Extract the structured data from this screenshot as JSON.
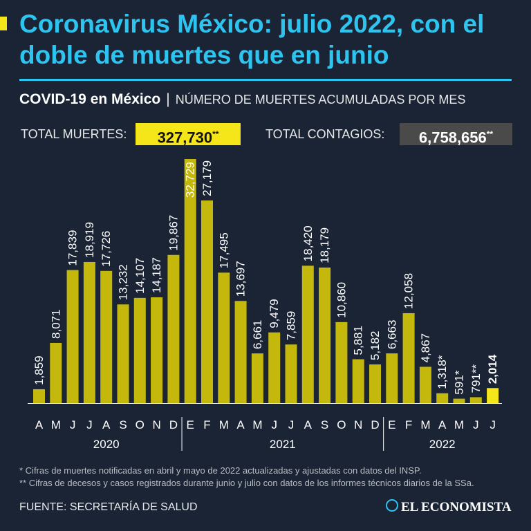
{
  "header": {
    "title": "Coronavirus México: julio 2022, con el doble de muertes que en junio",
    "subtitle_bold": "COVID-19 en México",
    "subtitle_sep": "|",
    "subtitle_light": "NÚMERO DE MUERTES ACUMULADAS POR MES"
  },
  "totals": {
    "deaths_label": "TOTAL MUERTES:",
    "deaths_value": "327,730",
    "deaths_mark": "**",
    "cases_label": "TOTAL CONTAGIOS:",
    "cases_value": "6,758,656",
    "cases_mark": "**"
  },
  "footnotes": {
    "note1": "* Cifras de muertes notificadas en abril y mayo de 2022 actualizadas y ajustadas con datos del INSP.",
    "note2": "** Cifras de decesos y casos registrados durante junio y julio con datos de los informes técnicos diarios de la SSa."
  },
  "source": "FUENTE: SECRETARÍA DE SALUD",
  "logo": "EL ECONOMISTA",
  "colors": {
    "bar": "#c4b80c",
    "highlight": "#f5e61a",
    "accent": "#2ec4f0",
    "background": "#1b2435"
  },
  "chart_data": {
    "type": "bar",
    "title": "Número de muertes acumuladas por mes",
    "categories": [
      "A",
      "M",
      "J",
      "J",
      "A",
      "S",
      "O",
      "N",
      "D",
      "E",
      "F",
      "M",
      "A",
      "M",
      "J",
      "J",
      "A",
      "S",
      "O",
      "N",
      "D",
      "E",
      "F",
      "M",
      "A",
      "M",
      "J",
      "J"
    ],
    "values": [
      1859,
      8071,
      17839,
      18919,
      17726,
      13232,
      14107,
      14187,
      19867,
      32729,
      27179,
      17495,
      13697,
      6661,
      9479,
      7859,
      18420,
      18179,
      10860,
      5881,
      5182,
      6663,
      12058,
      4867,
      1318,
      591,
      791,
      2014
    ],
    "labels": [
      "1,859",
      "8,071",
      "17,839",
      "18,919",
      "17,726",
      "13,232",
      "14,107",
      "14,187",
      "19,867",
      "32,729",
      "27,179",
      "17,495",
      "13,697",
      "6,661",
      "9,479",
      "7,859",
      "18,420",
      "18,179",
      "10,860",
      "5,881",
      "5,182",
      "6,663",
      "12,058",
      "4,867",
      "1,318*",
      "591*",
      "791**",
      "2,014"
    ],
    "highlight_index": 27,
    "years": [
      {
        "label": "2020",
        "start": 0,
        "end": 8
      },
      {
        "label": "2021",
        "start": 9,
        "end": 20
      },
      {
        "label": "2022",
        "start": 21,
        "end": 27
      }
    ],
    "ylim": [
      0,
      32729
    ],
    "xlabel": "",
    "ylabel": "",
    "grid": false
  }
}
